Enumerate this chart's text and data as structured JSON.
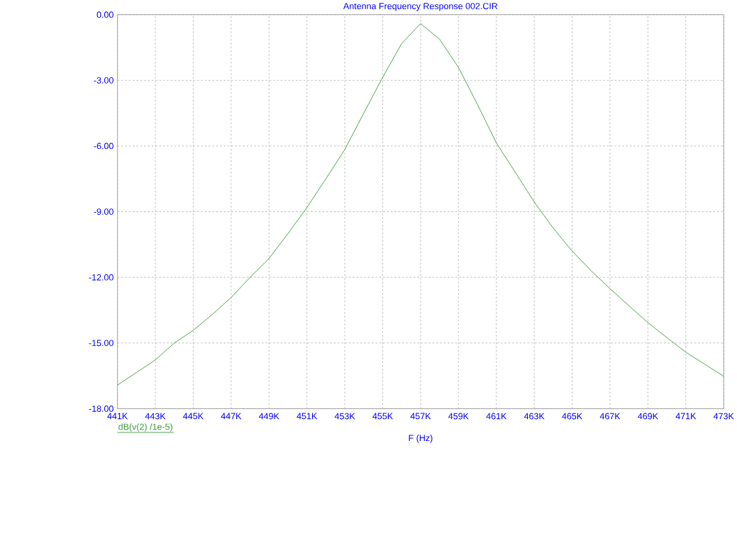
{
  "chart_data": {
    "type": "line",
    "title": "Antenna Frequency Response 002.CIR",
    "xlabel": "F (Hz)",
    "x": [
      441000,
      442000,
      443000,
      444000,
      445000,
      446000,
      447000,
      448000,
      449000,
      450000,
      451000,
      452000,
      453000,
      454000,
      455000,
      456000,
      457000,
      458000,
      459000,
      460000,
      461000,
      462000,
      463000,
      464000,
      465000,
      466000,
      467000,
      468000,
      469000,
      470000,
      471000,
      472000,
      473000
    ],
    "series": [
      {
        "name": "dB(v(2) /1e-5)",
        "color": "#3a9a3a",
        "values": [
          -16.92,
          -16.35,
          -15.77,
          -15.0,
          -14.42,
          -13.7,
          -12.92,
          -12.0,
          -11.14,
          -10.0,
          -8.81,
          -7.5,
          -6.16,
          -4.5,
          -2.86,
          -1.32,
          -0.41,
          -1.12,
          -2.41,
          -4.1,
          -5.86,
          -7.2,
          -8.56,
          -9.75,
          -10.8,
          -11.7,
          -12.52,
          -13.3,
          -14.07,
          -14.75,
          -15.42,
          -15.97,
          -16.52
        ]
      }
    ],
    "xlim": [
      441000,
      473000
    ],
    "ylim": [
      -18,
      0
    ],
    "xticks": [
      {
        "value": 441000,
        "label": "441K"
      },
      {
        "value": 443000,
        "label": "443K"
      },
      {
        "value": 445000,
        "label": "445K"
      },
      {
        "value": 447000,
        "label": "447K"
      },
      {
        "value": 449000,
        "label": "449K"
      },
      {
        "value": 451000,
        "label": "451K"
      },
      {
        "value": 453000,
        "label": "453K"
      },
      {
        "value": 455000,
        "label": "455K"
      },
      {
        "value": 457000,
        "label": "457K"
      },
      {
        "value": 459000,
        "label": "459K"
      },
      {
        "value": 461000,
        "label": "461K"
      },
      {
        "value": 463000,
        "label": "463K"
      },
      {
        "value": 465000,
        "label": "465K"
      },
      {
        "value": 467000,
        "label": "467K"
      },
      {
        "value": 469000,
        "label": "469K"
      },
      {
        "value": 471000,
        "label": "471K"
      },
      {
        "value": 473000,
        "label": "473K"
      }
    ],
    "yticks": [
      {
        "value": 0,
        "label": "0.00"
      },
      {
        "value": -3,
        "label": "-3.00"
      },
      {
        "value": -6,
        "label": "-6.00"
      },
      {
        "value": -9,
        "label": "-9.00"
      },
      {
        "value": -12,
        "label": "-12.00"
      },
      {
        "value": -15,
        "label": "-15.00"
      },
      {
        "value": -18,
        "label": "-18.00"
      }
    ],
    "grid": true,
    "legend": "bottom left",
    "marker": "none",
    "line_style": "solid"
  }
}
